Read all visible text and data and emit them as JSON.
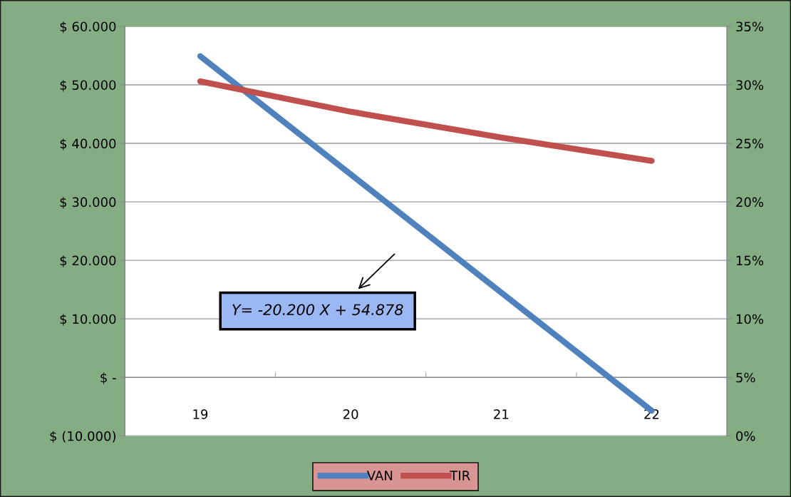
{
  "chart_data": {
    "type": "line",
    "categories": [
      "19",
      "20",
      "21",
      "22"
    ],
    "series": [
      {
        "name": "VAN",
        "color": "#4f81bd",
        "values": [
          54900,
          34700,
          14500,
          -5700
        ]
      },
      {
        "name": "TIR",
        "color": "#c0504d",
        "axis": "y2",
        "values": [
          30.3,
          27.7,
          25.5,
          23.5
        ]
      }
    ],
    "ylim": [
      -10000,
      60000
    ],
    "yticks": [
      {
        "value": -10000,
        "label": "$ (10.000)"
      },
      {
        "value": 0,
        "label": "$ -"
      },
      {
        "value": 10000,
        "label": "$ 10.000"
      },
      {
        "value": 20000,
        "label": "$ 20.000"
      },
      {
        "value": 30000,
        "label": "$ 30.000"
      },
      {
        "value": 40000,
        "label": "$ 40.000"
      },
      {
        "value": 50000,
        "label": "$ 50.000"
      },
      {
        "value": 60000,
        "label": "$ 60.000"
      }
    ],
    "y2lim": [
      0,
      35
    ],
    "y2ticks": [
      {
        "value": 0,
        "label": "0%"
      },
      {
        "value": 5,
        "label": "5%"
      },
      {
        "value": 10,
        "label": "10%"
      },
      {
        "value": 15,
        "label": "15%"
      },
      {
        "value": 20,
        "label": "20%"
      },
      {
        "value": 25,
        "label": "25%"
      },
      {
        "value": 30,
        "label": "30%"
      },
      {
        "value": 35,
        "label": "35%"
      }
    ],
    "annotations": [
      "Y= -20.200 X + 54.878"
    ],
    "grid": "y",
    "legend": "bottom",
    "marker": "none",
    "line_style": "solid"
  }
}
